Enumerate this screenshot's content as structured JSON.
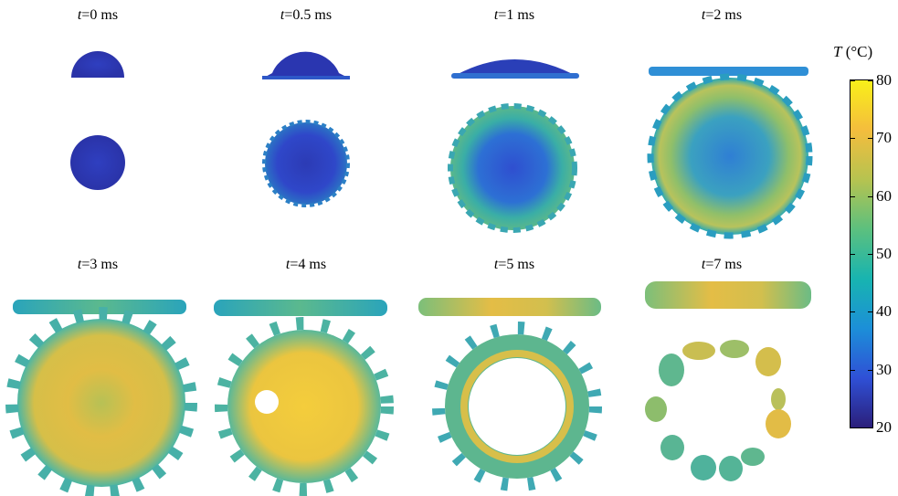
{
  "frames": [
    {
      "label_var": "t",
      "label_rest": "=0 ms"
    },
    {
      "label_var": "t",
      "label_rest": "=0.5 ms"
    },
    {
      "label_var": "t",
      "label_rest": "=1 ms"
    },
    {
      "label_var": "t",
      "label_rest": "=2 ms"
    },
    {
      "label_var": "t",
      "label_rest": "=3 ms"
    },
    {
      "label_var": "t",
      "label_rest": "=4 ms"
    },
    {
      "label_var": "t",
      "label_rest": "=5 ms"
    },
    {
      "label_var": "t",
      "label_rest": "=7 ms"
    }
  ],
  "colorbar": {
    "title_var": "T",
    "title_rest": " (°C)",
    "ticks": [
      "80",
      "70",
      "60",
      "50",
      "40",
      "30",
      "20"
    ],
    "range": [
      20,
      80
    ],
    "colors": [
      "#2b1f7a",
      "#2f50d6",
      "#1c8fd8",
      "#18b4b0",
      "#5cc07e",
      "#b6c350",
      "#f4bd3d",
      "#f9f019"
    ]
  }
}
